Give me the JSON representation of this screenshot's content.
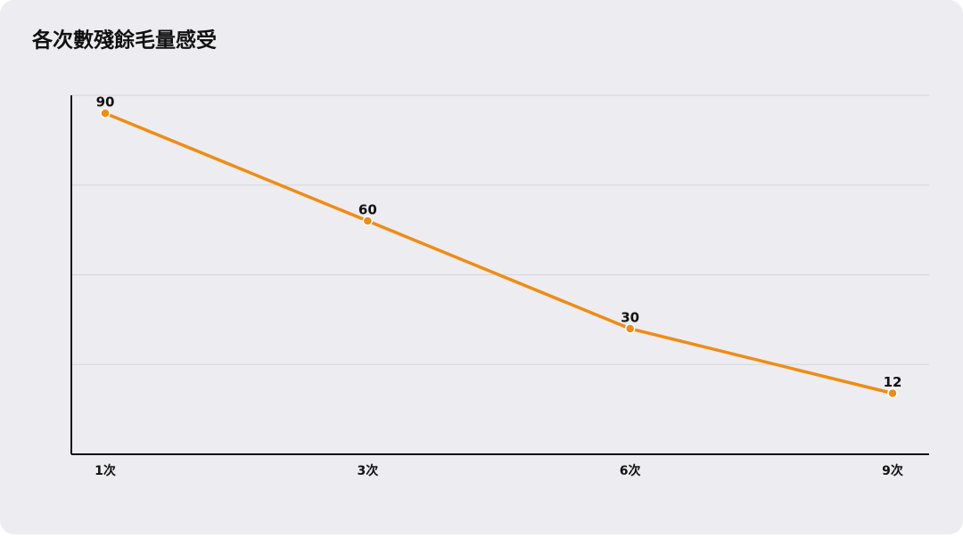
{
  "chart_data": {
    "type": "line",
    "title": "各次數殘餘毛量感受",
    "categories": [
      "1次",
      "3次",
      "6次",
      "9次"
    ],
    "series": [
      {
        "name": "殘餘毛量感受",
        "color": "#ef8c12",
        "values": [
          90,
          60,
          30,
          12
        ]
      }
    ],
    "ylim": [
      -5,
      95
    ],
    "yticks": [
      -5,
      20,
      45,
      70,
      95
    ],
    "grid": true
  }
}
